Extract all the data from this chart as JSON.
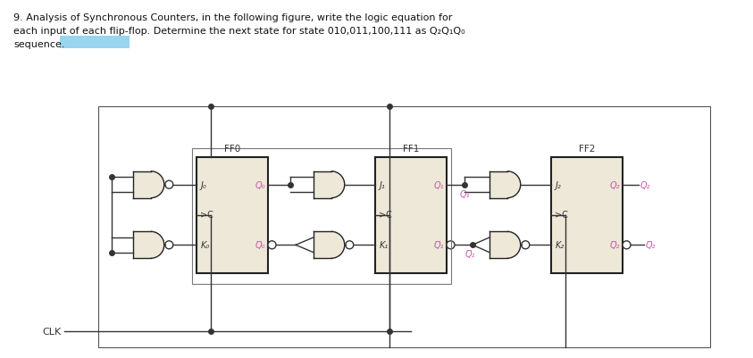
{
  "bg_color": "#ffffff",
  "ff_fill": "#EDE8D8",
  "ff_edge": "#222222",
  "gate_fill": "#EDE8D8",
  "gate_edge": "#222222",
  "label_color": "#CC55AA",
  "text_color": "#333333",
  "wire_color": "#333333",
  "highlight_color": "#87CEEB",
  "ff_labels": [
    "FF0",
    "FF1",
    "FF2"
  ],
  "j_labels": [
    "J₀",
    "J₁",
    "J₂"
  ],
  "k_labels": [
    "K₀",
    "K₁",
    "K₂"
  ],
  "q_labels": [
    "Q₀",
    "Q₁",
    "Q₂"
  ],
  "qbar_labels": [
    "Q̅₀",
    "Q̅₁",
    "Q̅₂"
  ],
  "title_line1": "9. Analysis of Synchronous Counters, in the following figure, write the logic equation for",
  "title_line2": "each input of each flip-flop. Determine the next state for state 010,011,100,111 as Q₂Q₁Q₀",
  "title_line3": "sequence.",
  "clk_label": "CLK"
}
